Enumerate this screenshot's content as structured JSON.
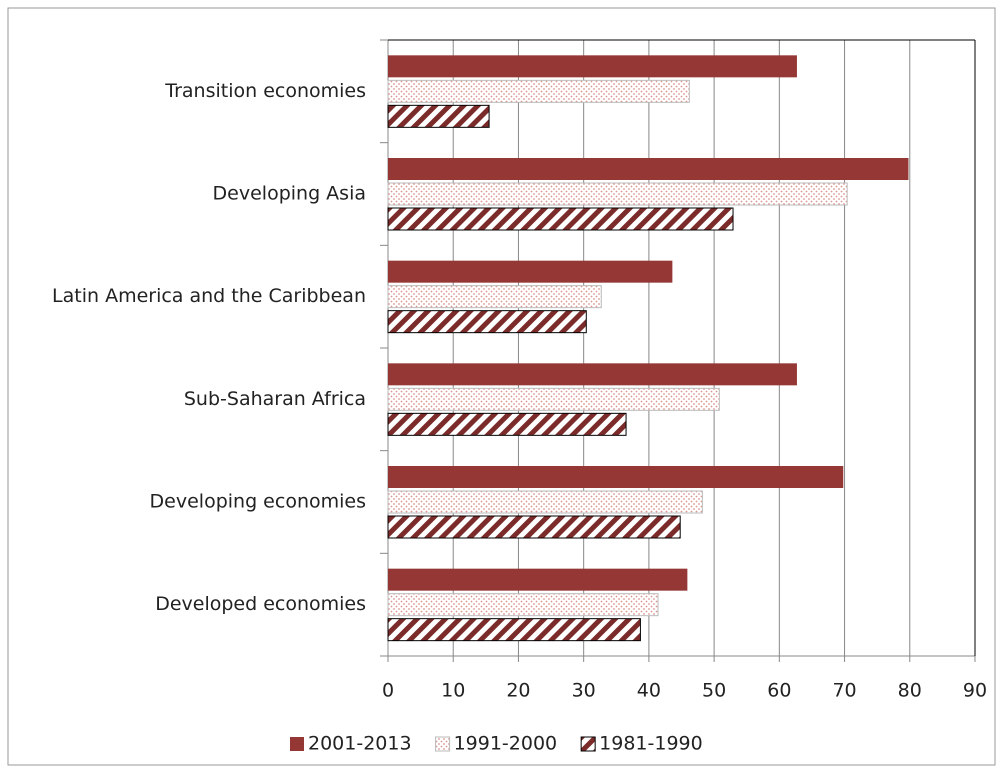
{
  "chart_data": {
    "type": "bar",
    "orientation": "horizontal",
    "categories": [
      "Transition economies",
      "Developing Asia",
      "Latin America and the Caribbean",
      "Sub-Saharan Africa",
      "Developing economies",
      "Developed economies"
    ],
    "series": [
      {
        "name": "2001-2013",
        "color": "#953735",
        "pattern": "solid",
        "values": [
          62.7,
          79.8,
          43.6,
          62.7,
          69.8,
          45.9
        ]
      },
      {
        "name": "1991-2000",
        "color": "#d9958f",
        "pattern": "dots",
        "values": [
          46.2,
          70.4,
          32.7,
          50.8,
          48.2,
          41.4
        ]
      },
      {
        "name": "1981-1990",
        "color": "#7b2c2a",
        "pattern": "hatch",
        "values": [
          15.5,
          52.9,
          30.4,
          36.5,
          44.8,
          38.7
        ]
      }
    ],
    "xlim": [
      0,
      90
    ],
    "xticks": [
      0,
      10,
      20,
      30,
      40,
      50,
      60,
      70,
      80,
      90
    ],
    "grid": true,
    "legend": "bottom"
  }
}
